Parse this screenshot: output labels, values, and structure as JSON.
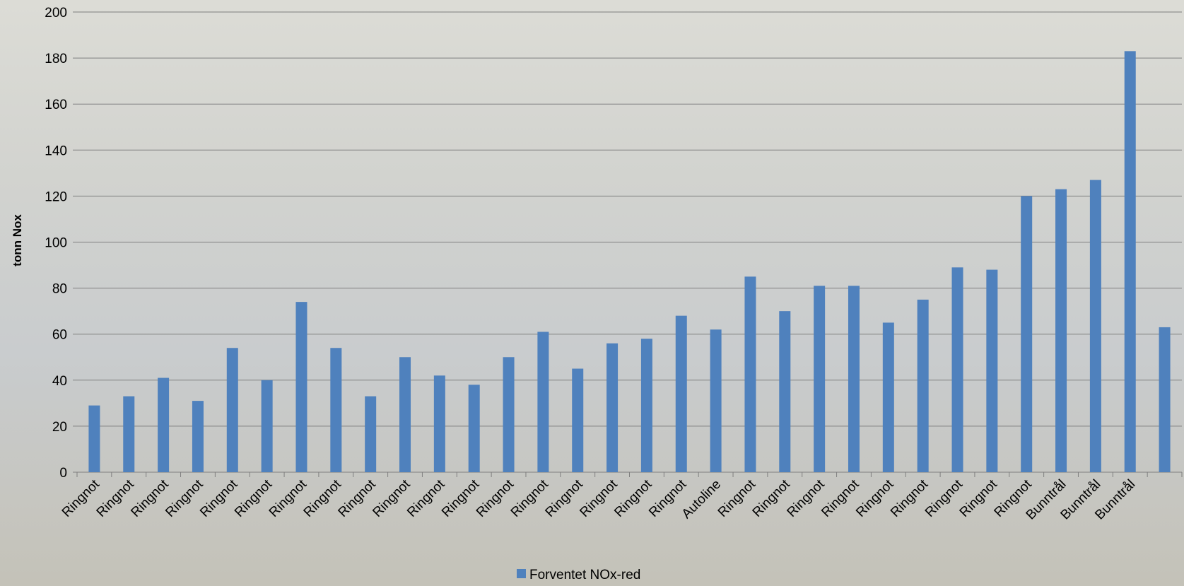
{
  "chart_data": {
    "type": "bar",
    "y_label": "tonn Nox",
    "categories": [
      "Ringnot",
      "Ringnot",
      "Ringnot",
      "Ringnot",
      "Ringnot",
      "Ringnot",
      "Ringnot",
      "Ringnot",
      "Ringnot",
      "Ringnot",
      "Ringnot",
      "Ringnot",
      "Ringnot",
      "Ringnot",
      "Ringnot",
      "Ringnot",
      "Ringnot",
      "Ringnot",
      "Autoline",
      "Ringnot",
      "Ringnot",
      "Ringnot",
      "Ringnot",
      "Ringnot",
      "Ringnot",
      "Ringnot",
      "Ringnot",
      "Ringnot",
      "Bunntrål",
      "Bunntrål",
      "Bunntrål",
      null
    ],
    "series": [
      {
        "name": "Forventet NOx-red",
        "color": "#4f81bd",
        "values": [
          29,
          33,
          41,
          31,
          54,
          40,
          74,
          54,
          33,
          50,
          42,
          38,
          50,
          61,
          45,
          56,
          58,
          68,
          62,
          85,
          70,
          81,
          81,
          65,
          75,
          89,
          88,
          120,
          123,
          127,
          183,
          63
        ]
      }
    ],
    "ylim": [
      0,
      200
    ],
    "yticks": [
      0,
      20,
      40,
      60,
      80,
      100,
      120,
      140,
      160,
      180,
      200
    ],
    "grid": true,
    "legend": "bottom"
  }
}
